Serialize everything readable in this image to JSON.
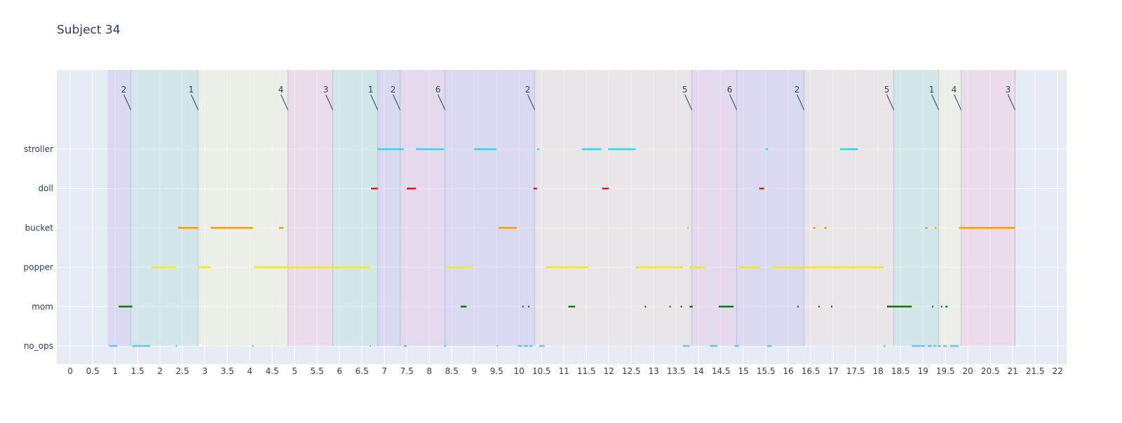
{
  "chart_data": {
    "type": "timeline",
    "title": "Subject 34",
    "xlabel": "",
    "ylabel": "",
    "xlim": [
      -0.3,
      22.2
    ],
    "x_ticks": [
      0,
      0.5,
      1,
      1.5,
      2,
      2.5,
      3,
      3.5,
      4,
      4.5,
      5,
      5.5,
      6,
      6.5,
      7,
      7.5,
      8,
      8.5,
      9,
      9.5,
      10,
      10.5,
      11,
      11.5,
      12,
      12.5,
      13,
      13.5,
      14,
      14.5,
      15,
      15.5,
      16,
      16.5,
      17,
      17.5,
      18,
      18.5,
      19,
      19.5,
      20,
      20.5,
      21,
      21.5,
      22
    ],
    "x_tick_labels": [
      "0",
      "0.5",
      "1",
      "1.5",
      "2",
      "2.5",
      "3",
      "3.5",
      "4",
      "4.5",
      "5",
      "5.5",
      "6",
      "6.5",
      "7",
      "7.5",
      "8",
      "8.5",
      "9",
      "9.5",
      "10",
      "10.5",
      "11",
      "11.5",
      "12",
      "12.5",
      "13",
      "13.5",
      "14",
      "14.5",
      "15",
      "15.5",
      "16",
      "16.5",
      "17",
      "17.5",
      "18",
      "18.5",
      "19",
      "19.5",
      "20",
      "20.5",
      "21",
      "21.5",
      "22"
    ],
    "categories": [
      "stroller",
      "doll",
      "bucket",
      "popper",
      "mom",
      "no_ops"
    ],
    "grid": true,
    "colors": {
      "plot_bg": "#e5ecf6",
      "grid": "#ffffff",
      "text": "#2a3f5f",
      "stroller": "#1fe0e8",
      "doll": "#e8141c",
      "bucket": "#f39c12",
      "popper": "#f2e733",
      "mom": "#0a7a0a",
      "no_ops": "#6ec6e6"
    },
    "phases": [
      {
        "label": "2",
        "start": 0.83,
        "end": 1.35,
        "color": "#c9c3ee"
      },
      {
        "label": "1",
        "start": 1.35,
        "end": 2.85,
        "color": "#bfe3d8"
      },
      {
        "label": "4",
        "start": 2.85,
        "end": 4.85,
        "color": "#f1f3d5"
      },
      {
        "label": "3",
        "start": 4.85,
        "end": 5.85,
        "color": "#f1c9d9"
      },
      {
        "label": "1",
        "start": 5.85,
        "end": 6.85,
        "color": "#bfe3d8"
      },
      {
        "label": "2",
        "start": 6.85,
        "end": 7.35,
        "color": "#c9c3ee"
      },
      {
        "label": "6",
        "start": 7.35,
        "end": 8.35,
        "color": "#e3c5e3"
      },
      {
        "label": "2",
        "start": 8.35,
        "end": 10.35,
        "color": "#c9c3ee"
      },
      {
        "label": "5",
        "start": 10.35,
        "end": 13.85,
        "color": "#ebe1d6"
      },
      {
        "label": "6",
        "start": 13.85,
        "end": 14.85,
        "color": "#e3c5e3"
      },
      {
        "label": "2",
        "start": 14.85,
        "end": 16.35,
        "color": "#c9c3ee"
      },
      {
        "label": "5",
        "start": 16.35,
        "end": 18.35,
        "color": "#ebe1d6"
      },
      {
        "label": "1",
        "start": 18.35,
        "end": 19.35,
        "color": "#bfe3d8"
      },
      {
        "label": "4",
        "start": 19.35,
        "end": 19.85,
        "color": "#f1f3d5"
      },
      {
        "label": "3",
        "start": 19.85,
        "end": 21.05,
        "color": "#f1c9d9"
      }
    ],
    "series": [
      {
        "name": "stroller",
        "segments": [
          [
            6.85,
            7.43
          ],
          [
            7.7,
            8.33
          ],
          [
            9.0,
            9.5
          ],
          [
            10.4,
            10.45
          ],
          [
            11.4,
            11.83
          ],
          [
            11.98,
            12.6
          ],
          [
            15.5,
            15.55
          ],
          [
            17.15,
            17.55
          ]
        ]
      },
      {
        "name": "doll",
        "segments": [
          [
            6.7,
            6.85
          ],
          [
            7.5,
            7.7
          ],
          [
            10.32,
            10.4
          ],
          [
            11.85,
            12.0
          ],
          [
            15.35,
            15.46
          ]
        ]
      },
      {
        "name": "bucket",
        "segments": [
          [
            2.4,
            2.85
          ],
          [
            3.13,
            4.07
          ],
          [
            4.65,
            4.75
          ],
          [
            9.55,
            9.95
          ],
          [
            13.75,
            13.78
          ],
          [
            16.55,
            16.6
          ],
          [
            16.8,
            16.85
          ],
          [
            19.05,
            19.1
          ],
          [
            19.27,
            19.3
          ],
          [
            19.8,
            21.05
          ]
        ]
      },
      {
        "name": "popper",
        "segments": [
          [
            1.8,
            2.35
          ],
          [
            2.85,
            3.13
          ],
          [
            4.1,
            6.68
          ],
          [
            8.38,
            8.97
          ],
          [
            10.6,
            11.55
          ],
          [
            12.6,
            13.65
          ],
          [
            13.8,
            14.15
          ],
          [
            14.9,
            15.35
          ],
          [
            15.63,
            18.12
          ]
        ]
      },
      {
        "name": "mom",
        "segments": [
          [
            1.08,
            1.38
          ],
          [
            8.7,
            8.83
          ],
          [
            10.07,
            10.1
          ],
          [
            10.2,
            10.23
          ],
          [
            11.1,
            11.25
          ],
          [
            12.8,
            12.83
          ],
          [
            13.35,
            13.38
          ],
          [
            13.6,
            13.63
          ],
          [
            13.8,
            13.87
          ],
          [
            14.45,
            14.78
          ],
          [
            16.2,
            16.23
          ],
          [
            16.67,
            16.7
          ],
          [
            16.95,
            16.98
          ],
          [
            18.2,
            18.75
          ],
          [
            19.2,
            19.23
          ],
          [
            19.4,
            19.43
          ],
          [
            19.5,
            19.55
          ]
        ]
      },
      {
        "name": "no_ops",
        "segments": [
          [
            0.87,
            1.05
          ],
          [
            1.38,
            1.78
          ],
          [
            2.35,
            2.38
          ],
          [
            4.05,
            4.08
          ],
          [
            6.67,
            6.7
          ],
          [
            7.43,
            7.5
          ],
          [
            8.33,
            8.38
          ],
          [
            9.5,
            9.53
          ],
          [
            9.97,
            10.07
          ],
          [
            10.1,
            10.2
          ],
          [
            10.23,
            10.3
          ],
          [
            10.45,
            10.57
          ],
          [
            13.65,
            13.8
          ],
          [
            14.25,
            14.42
          ],
          [
            14.8,
            14.9
          ],
          [
            15.53,
            15.63
          ],
          [
            18.12,
            18.16
          ],
          [
            18.75,
            19.05
          ],
          [
            19.1,
            19.2
          ],
          [
            19.23,
            19.3
          ],
          [
            19.33,
            19.4
          ],
          [
            19.45,
            19.53
          ],
          [
            19.6,
            19.8
          ]
        ]
      }
    ]
  }
}
